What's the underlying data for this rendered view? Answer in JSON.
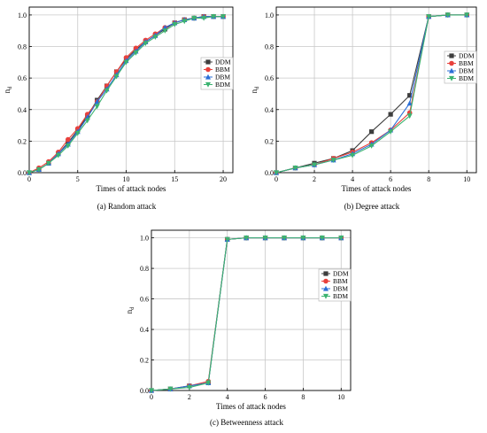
{
  "chart_data": [
    {
      "type": "line",
      "caption": "(a)  Random attack",
      "xlabel": "Times of attack nodes",
      "ylabel": "n",
      "ylabel_sub": "d",
      "xlim": [
        0,
        21
      ],
      "ylim": [
        0,
        1.05
      ],
      "xticks": [
        0,
        5,
        10,
        15,
        20
      ],
      "yticks": [
        0.0,
        0.2,
        0.4,
        0.6,
        0.8,
        1.0
      ],
      "grid": true,
      "legend_position": "right-middle",
      "series": [
        {
          "name": "DDM",
          "color": "#3d3d3d",
          "marker": "square",
          "x": [
            0,
            1,
            2,
            3,
            4,
            5,
            6,
            7,
            8,
            9,
            10,
            11,
            12,
            13,
            14,
            15,
            16,
            17,
            18,
            19,
            20
          ],
          "y": [
            0,
            0.02,
            0.06,
            0.12,
            0.19,
            0.27,
            0.36,
            0.46,
            0.55,
            0.64,
            0.72,
            0.78,
            0.83,
            0.87,
            0.91,
            0.95,
            0.97,
            0.98,
            0.99,
            0.99,
            0.99
          ]
        },
        {
          "name": "BBM",
          "color": "#e8413c",
          "marker": "circle",
          "x": [
            0,
            1,
            2,
            3,
            4,
            5,
            6,
            7,
            8,
            9,
            10,
            11,
            12,
            13,
            14,
            15,
            16,
            17,
            18,
            19,
            20
          ],
          "y": [
            0,
            0.03,
            0.07,
            0.13,
            0.21,
            0.28,
            0.37,
            0.45,
            0.55,
            0.64,
            0.73,
            0.79,
            0.84,
            0.88,
            0.92,
            0.95,
            0.97,
            0.98,
            0.99,
            0.99,
            0.99
          ]
        },
        {
          "name": "DBM",
          "color": "#2b6fd6",
          "marker": "triangle-up",
          "x": [
            0,
            1,
            2,
            3,
            4,
            5,
            6,
            7,
            8,
            9,
            10,
            11,
            12,
            13,
            14,
            15,
            16,
            17,
            18,
            19,
            20
          ],
          "y": [
            0,
            0.02,
            0.06,
            0.12,
            0.18,
            0.26,
            0.35,
            0.45,
            0.53,
            0.62,
            0.71,
            0.77,
            0.83,
            0.87,
            0.92,
            0.95,
            0.97,
            0.98,
            0.99,
            0.99,
            0.99
          ]
        },
        {
          "name": "BDM",
          "color": "#3cb371",
          "marker": "triangle-down",
          "x": [
            0,
            1,
            2,
            3,
            4,
            5,
            6,
            7,
            8,
            9,
            10,
            11,
            12,
            13,
            14,
            15,
            16,
            17,
            18,
            19,
            20
          ],
          "y": [
            0,
            0.02,
            0.06,
            0.11,
            0.17,
            0.25,
            0.33,
            0.42,
            0.52,
            0.61,
            0.7,
            0.76,
            0.82,
            0.86,
            0.9,
            0.94,
            0.96,
            0.98,
            0.98,
            0.99,
            0.99
          ]
        }
      ]
    },
    {
      "type": "line",
      "caption": "(b)  Degree attack",
      "xlabel": "Times of attack nodes",
      "ylabel": "n",
      "ylabel_sub": "d",
      "xlim": [
        0,
        10.5
      ],
      "ylim": [
        0,
        1.05
      ],
      "xticks": [
        0,
        2,
        4,
        6,
        8,
        10
      ],
      "yticks": [
        0.0,
        0.2,
        0.4,
        0.6,
        0.8,
        1.0
      ],
      "grid": true,
      "legend_position": "right-top",
      "series": [
        {
          "name": "DDM",
          "color": "#3d3d3d",
          "marker": "square",
          "x": [
            0,
            1,
            2,
            3,
            4,
            5,
            6,
            7,
            8,
            9,
            10
          ],
          "y": [
            0,
            0.03,
            0.06,
            0.09,
            0.14,
            0.26,
            0.37,
            0.49,
            0.99,
            1.0,
            1.0
          ]
        },
        {
          "name": "BBM",
          "color": "#e8413c",
          "marker": "circle",
          "x": [
            0,
            1,
            2,
            3,
            4,
            5,
            6,
            7,
            8,
            9,
            10
          ],
          "y": [
            0,
            0.03,
            0.05,
            0.09,
            0.13,
            0.19,
            0.27,
            0.38,
            0.99,
            1.0,
            1.0
          ]
        },
        {
          "name": "DBM",
          "color": "#2b6fd6",
          "marker": "triangle-up",
          "x": [
            0,
            1,
            2,
            3,
            4,
            5,
            6,
            7,
            8,
            9,
            10
          ],
          "y": [
            0,
            0.03,
            0.05,
            0.08,
            0.12,
            0.18,
            0.27,
            0.44,
            0.99,
            1.0,
            1.0
          ]
        },
        {
          "name": "BDM",
          "color": "#3cb371",
          "marker": "triangle-down",
          "x": [
            0,
            1,
            2,
            3,
            4,
            5,
            6,
            7,
            8,
            9,
            10
          ],
          "y": [
            0,
            0.03,
            0.05,
            0.08,
            0.11,
            0.17,
            0.26,
            0.36,
            0.99,
            1.0,
            1.0
          ]
        }
      ]
    },
    {
      "type": "line",
      "caption": "(c)  Betweenness attack",
      "xlabel": "Times of attack nodes",
      "ylabel": "n",
      "ylabel_sub": "d",
      "xlim": [
        0,
        10.5
      ],
      "ylim": [
        0,
        1.05
      ],
      "xticks": [
        0,
        2,
        4,
        6,
        8,
        10
      ],
      "yticks": [
        0.0,
        0.2,
        0.4,
        0.6,
        0.8,
        1.0
      ],
      "grid": true,
      "legend_position": "right-middle",
      "series": [
        {
          "name": "DDM",
          "color": "#3d3d3d",
          "marker": "square",
          "x": [
            0,
            1,
            2,
            3,
            4,
            5,
            6,
            7,
            8,
            9,
            10
          ],
          "y": [
            0,
            0.01,
            0.03,
            0.05,
            0.99,
            1.0,
            1.0,
            1.0,
            1.0,
            1.0,
            1.0
          ]
        },
        {
          "name": "BBM",
          "color": "#e8413c",
          "marker": "circle",
          "x": [
            0,
            1,
            2,
            3,
            4,
            5,
            6,
            7,
            8,
            9,
            10
          ],
          "y": [
            0,
            0.01,
            0.03,
            0.06,
            0.99,
            1.0,
            1.0,
            1.0,
            1.0,
            1.0,
            1.0
          ]
        },
        {
          "name": "DBM",
          "color": "#2b6fd6",
          "marker": "triangle-up",
          "x": [
            0,
            1,
            2,
            3,
            4,
            5,
            6,
            7,
            8,
            9,
            10
          ],
          "y": [
            0,
            0.01,
            0.03,
            0.05,
            0.99,
            1.0,
            1.0,
            1.0,
            1.0,
            1.0,
            1.0
          ]
        },
        {
          "name": "BDM",
          "color": "#3cb371",
          "marker": "triangle-down",
          "x": [
            0,
            1,
            2,
            3,
            4,
            5,
            6,
            7,
            8,
            9,
            10
          ],
          "y": [
            0,
            0.01,
            0.02,
            0.05,
            0.99,
            1.0,
            1.0,
            1.0,
            1.0,
            1.0,
            1.0
          ]
        }
      ]
    }
  ]
}
